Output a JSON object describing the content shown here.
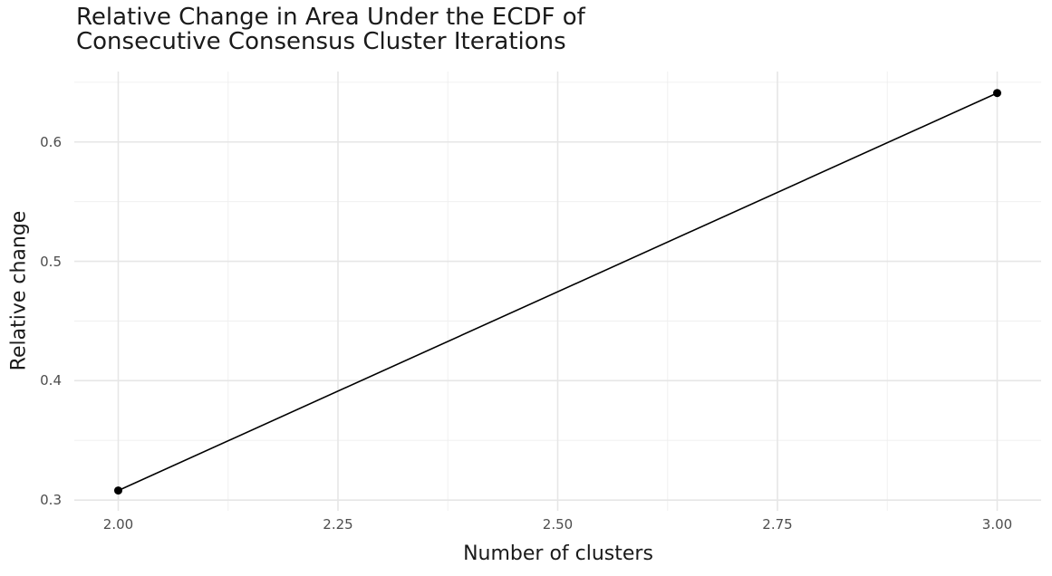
{
  "chart_data": {
    "type": "line",
    "title": "Relative Change in Area Under the ECDF of\nConsecutive Consensus Cluster Iterations",
    "xlabel": "Number of clusters",
    "ylabel": "Relative change",
    "points": [
      {
        "x": 2.0,
        "y": 0.308
      },
      {
        "x": 3.0,
        "y": 0.641
      }
    ],
    "xlim": [
      1.95,
      3.05
    ],
    "ylim": [
      0.291,
      0.659
    ],
    "x_ticks": {
      "values": [
        2.0,
        2.25,
        2.5,
        2.75,
        3.0
      ],
      "labels": [
        "2.00",
        "2.25",
        "2.50",
        "2.75",
        "3.00"
      ]
    },
    "y_ticks": {
      "values": [
        0.3,
        0.4,
        0.5,
        0.6
      ],
      "labels": [
        "0.3",
        "0.4",
        "0.5",
        "0.6"
      ]
    },
    "grid": "major+minor",
    "legend": "none",
    "colors": {
      "background": "#ffffff",
      "line": "#000000",
      "point": "#000000",
      "grid_major": "#e6e6e6",
      "grid_minor": "#f0f0f0",
      "tick_text": "#4d4d4d",
      "title_text": "#1a1a1a",
      "axis_title_text": "#1a1a1a"
    }
  }
}
